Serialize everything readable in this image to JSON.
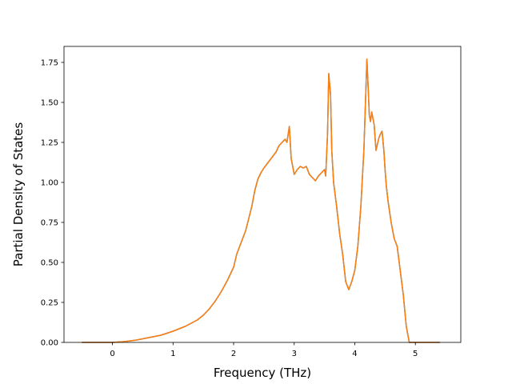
{
  "chart_data": {
    "type": "line",
    "title": "",
    "xlabel": "Frequency (THz)",
    "ylabel": "Partial Density of States",
    "xlim": [
      -0.8,
      5.75
    ],
    "ylim": [
      0,
      1.85
    ],
    "xticks": [
      0,
      1,
      2,
      3,
      4,
      5
    ],
    "xtick_labels": [
      "0",
      "1",
      "2",
      "3",
      "4",
      "5"
    ],
    "yticks": [
      0,
      0.25,
      0.5,
      0.75,
      1.0,
      1.25,
      1.5,
      1.75
    ],
    "ytick_labels": [
      "0.00",
      "0.25",
      "0.50",
      "0.75",
      "1.00",
      "1.25",
      "1.50",
      "1.75"
    ],
    "grid": false,
    "colors": [
      "#1f77b4",
      "#ff7f0e"
    ],
    "series": [
      {
        "color": "#1f77b4",
        "x": [
          -0.5,
          0.0,
          0.2,
          0.4,
          0.6,
          0.8,
          1.0,
          1.2,
          1.4,
          1.5,
          1.6,
          1.7,
          1.8,
          1.9,
          2.0,
          2.05,
          2.1,
          2.2,
          2.3,
          2.35,
          2.4,
          2.45,
          2.5,
          2.6,
          2.7,
          2.75,
          2.8,
          2.85,
          2.88,
          2.9,
          2.92,
          2.95,
          3.0,
          3.05,
          3.1,
          3.15,
          3.2,
          3.25,
          3.3,
          3.35,
          3.4,
          3.45,
          3.5,
          3.52,
          3.55,
          3.57,
          3.6,
          3.62,
          3.65,
          3.7,
          3.75,
          3.8,
          3.85,
          3.9,
          3.95,
          4.0,
          4.05,
          4.1,
          4.15,
          4.2,
          4.22,
          4.24,
          4.26,
          4.28,
          4.3,
          4.32,
          4.35,
          4.38,
          4.4,
          4.42,
          4.45,
          4.48,
          4.5,
          4.52,
          4.55,
          4.6,
          4.65,
          4.7,
          4.75,
          4.8,
          4.85,
          4.9,
          4.93,
          4.95,
          5.0,
          5.2,
          5.4
        ],
        "y": [
          0.0,
          0.0,
          0.005,
          0.015,
          0.03,
          0.045,
          0.07,
          0.1,
          0.14,
          0.17,
          0.21,
          0.26,
          0.32,
          0.39,
          0.47,
          0.55,
          0.6,
          0.7,
          0.85,
          0.95,
          1.02,
          1.06,
          1.09,
          1.14,
          1.19,
          1.23,
          1.25,
          1.27,
          1.25,
          1.3,
          1.35,
          1.15,
          1.05,
          1.08,
          1.1,
          1.09,
          1.1,
          1.05,
          1.03,
          1.01,
          1.04,
          1.06,
          1.08,
          1.04,
          1.3,
          1.68,
          1.55,
          1.2,
          1.0,
          0.85,
          0.68,
          0.55,
          0.38,
          0.33,
          0.38,
          0.45,
          0.6,
          0.85,
          1.2,
          1.77,
          1.6,
          1.42,
          1.38,
          1.44,
          1.4,
          1.36,
          1.2,
          1.25,
          1.28,
          1.3,
          1.32,
          1.2,
          1.08,
          0.98,
          0.88,
          0.75,
          0.65,
          0.6,
          0.45,
          0.3,
          0.1,
          0.0,
          0.0,
          0.0,
          0.0,
          0.0,
          0.0
        ]
      },
      {
        "color": "#ff7f0e",
        "x": [
          -0.5,
          0.0,
          0.2,
          0.4,
          0.6,
          0.8,
          1.0,
          1.2,
          1.4,
          1.5,
          1.6,
          1.7,
          1.8,
          1.9,
          2.0,
          2.05,
          2.1,
          2.2,
          2.3,
          2.35,
          2.4,
          2.45,
          2.5,
          2.6,
          2.7,
          2.75,
          2.8,
          2.85,
          2.88,
          2.9,
          2.92,
          2.95,
          3.0,
          3.05,
          3.1,
          3.15,
          3.2,
          3.25,
          3.3,
          3.35,
          3.4,
          3.45,
          3.5,
          3.52,
          3.55,
          3.57,
          3.6,
          3.62,
          3.65,
          3.7,
          3.75,
          3.8,
          3.85,
          3.9,
          3.95,
          4.0,
          4.05,
          4.1,
          4.15,
          4.2,
          4.22,
          4.24,
          4.26,
          4.28,
          4.3,
          4.32,
          4.35,
          4.38,
          4.4,
          4.42,
          4.45,
          4.48,
          4.5,
          4.52,
          4.55,
          4.6,
          4.65,
          4.7,
          4.75,
          4.8,
          4.85,
          4.9,
          4.93,
          4.95,
          5.0,
          5.2,
          5.4
        ],
        "y": [
          0.0,
          0.0,
          0.005,
          0.015,
          0.03,
          0.045,
          0.07,
          0.1,
          0.14,
          0.17,
          0.21,
          0.26,
          0.32,
          0.39,
          0.47,
          0.55,
          0.6,
          0.7,
          0.85,
          0.95,
          1.02,
          1.06,
          1.09,
          1.14,
          1.19,
          1.23,
          1.25,
          1.27,
          1.25,
          1.3,
          1.35,
          1.15,
          1.05,
          1.08,
          1.1,
          1.09,
          1.1,
          1.05,
          1.03,
          1.01,
          1.04,
          1.06,
          1.08,
          1.04,
          1.3,
          1.68,
          1.55,
          1.2,
          1.0,
          0.85,
          0.68,
          0.55,
          0.38,
          0.33,
          0.38,
          0.45,
          0.6,
          0.85,
          1.2,
          1.77,
          1.6,
          1.42,
          1.38,
          1.44,
          1.4,
          1.36,
          1.2,
          1.25,
          1.28,
          1.3,
          1.32,
          1.2,
          1.08,
          0.98,
          0.88,
          0.75,
          0.65,
          0.6,
          0.45,
          0.3,
          0.1,
          0.0,
          0.0,
          0.0,
          0.0,
          0.0,
          0.0
        ]
      }
    ]
  }
}
